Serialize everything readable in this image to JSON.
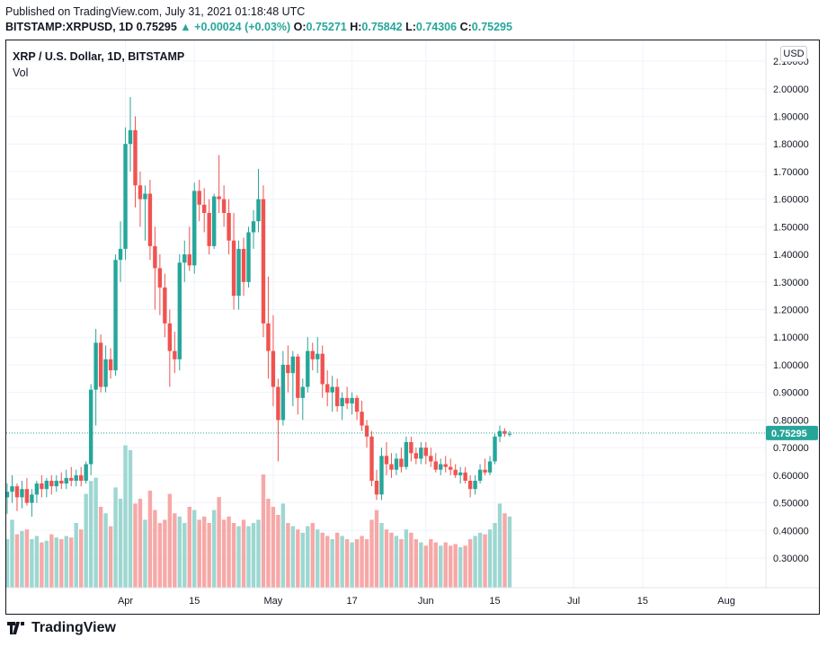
{
  "header": {
    "published": "Published on TradingView.com, July 31, 2021 01:18:48 UTC",
    "symbol_line": "BITSTAMP:XRPUSD, 1D",
    "last": "0.75295",
    "change": "▲ +0.00024 (+0.03%)",
    "o_label": "O:",
    "o_value": "0.75271",
    "h_label": "H:",
    "h_value": "0.75842",
    "l_label": "L:",
    "l_value": "0.74306",
    "c_label": "C:",
    "c_value": "0.75295"
  },
  "legend": {
    "title": "XRP / U.S. Dollar, 1D, BITSTAMP",
    "vol": "Vol"
  },
  "currency_button": "USD",
  "footer": {
    "brand": "TradingView"
  },
  "colors": {
    "up": "#26a69a",
    "down": "#ef5350",
    "up_vol": "#9dd7d1",
    "down_vol": "#f6a8a7",
    "grid": "#f0f3fa",
    "price_line": "#26a69a"
  },
  "chart_data": {
    "type": "candlestick",
    "y_axis_labels": [
      "2.10000",
      "2.00000",
      "1.90000",
      "1.80000",
      "1.70000",
      "1.60000",
      "1.50000",
      "1.40000",
      "1.30000",
      "1.20000",
      "1.10000",
      "1.00000",
      "0.90000",
      "0.80000",
      "0.70000",
      "0.60000",
      "0.50000",
      "0.40000",
      "0.30000"
    ],
    "ylim": [
      0.1,
      2.13
    ],
    "x_axis_labels": [
      "Apr",
      "15",
      "May",
      "17",
      "Jun",
      "15",
      "Jul",
      "15",
      "Aug"
    ],
    "x_tick_candle_index": [
      24,
      38,
      54,
      70,
      85,
      99,
      115,
      129,
      146
    ],
    "last_price_label": "0.75295",
    "scale": "linear",
    "grid": true,
    "candles": [
      [
        0.52,
        0.57,
        0.46,
        0.54
      ],
      [
        0.54,
        0.6,
        0.5,
        0.56
      ],
      [
        0.56,
        0.57,
        0.47,
        0.52
      ],
      [
        0.52,
        0.58,
        0.48,
        0.55
      ],
      [
        0.55,
        0.59,
        0.49,
        0.5
      ],
      [
        0.5,
        0.55,
        0.45,
        0.53
      ],
      [
        0.53,
        0.58,
        0.5,
        0.57
      ],
      [
        0.57,
        0.6,
        0.52,
        0.55
      ],
      [
        0.55,
        0.59,
        0.52,
        0.58
      ],
      [
        0.58,
        0.6,
        0.53,
        0.56
      ],
      [
        0.56,
        0.6,
        0.54,
        0.58
      ],
      [
        0.58,
        0.61,
        0.55,
        0.57
      ],
      [
        0.57,
        0.62,
        0.55,
        0.59
      ],
      [
        0.59,
        0.63,
        0.56,
        0.58
      ],
      [
        0.58,
        0.62,
        0.56,
        0.6
      ],
      [
        0.6,
        0.63,
        0.56,
        0.58
      ],
      [
        0.58,
        0.65,
        0.57,
        0.64
      ],
      [
        0.64,
        0.93,
        0.6,
        0.91
      ],
      [
        0.91,
        1.13,
        0.78,
        1.08
      ],
      [
        1.08,
        1.11,
        0.9,
        0.92
      ],
      [
        0.92,
        1.07,
        0.9,
        1.02
      ],
      [
        1.02,
        1.06,
        0.95,
        0.98
      ],
      [
        0.98,
        1.4,
        0.96,
        1.38
      ],
      [
        1.38,
        1.52,
        1.3,
        1.42
      ],
      [
        1.42,
        1.86,
        1.38,
        1.8
      ],
      [
        1.8,
        1.97,
        1.7,
        1.85
      ],
      [
        1.85,
        1.9,
        1.57,
        1.65
      ],
      [
        1.65,
        1.7,
        1.5,
        1.6
      ],
      [
        1.6,
        1.65,
        1.45,
        1.62
      ],
      [
        1.62,
        1.67,
        1.38,
        1.43
      ],
      [
        1.43,
        1.5,
        1.2,
        1.35
      ],
      [
        1.35,
        1.4,
        1.18,
        1.28
      ],
      [
        1.28,
        1.33,
        1.1,
        1.15
      ],
      [
        1.15,
        1.2,
        0.92,
        1.05
      ],
      [
        1.05,
        1.12,
        0.97,
        1.02
      ],
      [
        1.02,
        1.4,
        0.98,
        1.37
      ],
      [
        1.37,
        1.45,
        1.3,
        1.4
      ],
      [
        1.4,
        1.5,
        1.34,
        1.36
      ],
      [
        1.36,
        1.66,
        1.33,
        1.63
      ],
      [
        1.63,
        1.67,
        1.52,
        1.58
      ],
      [
        1.58,
        1.64,
        1.48,
        1.55
      ],
      [
        1.55,
        1.6,
        1.4,
        1.43
      ],
      [
        1.43,
        1.62,
        1.42,
        1.61
      ],
      [
        1.61,
        1.76,
        1.55,
        1.6
      ],
      [
        1.6,
        1.65,
        1.5,
        1.55
      ],
      [
        1.55,
        1.6,
        1.4,
        1.45
      ],
      [
        1.45,
        1.55,
        1.2,
        1.25
      ],
      [
        1.25,
        1.45,
        1.2,
        1.42
      ],
      [
        1.42,
        1.46,
        1.25,
        1.3
      ],
      [
        1.3,
        1.5,
        1.28,
        1.48
      ],
      [
        1.48,
        1.56,
        1.42,
        1.52
      ],
      [
        1.52,
        1.71,
        1.48,
        1.6
      ],
      [
        1.6,
        1.65,
        1.1,
        1.15
      ],
      [
        1.15,
        1.32,
        0.95,
        1.05
      ],
      [
        1.05,
        1.18,
        0.85,
        0.92
      ],
      [
        0.92,
        0.95,
        0.65,
        0.8
      ],
      [
        0.8,
        1.05,
        0.78,
        1.0
      ],
      [
        1.0,
        1.07,
        0.9,
        0.97
      ],
      [
        0.97,
        1.05,
        0.85,
        1.03
      ],
      [
        1.03,
        1.04,
        0.82,
        0.88
      ],
      [
        0.88,
        0.95,
        0.8,
        0.92
      ],
      [
        0.92,
        1.1,
        0.9,
        1.05
      ],
      [
        1.05,
        1.08,
        0.98,
        1.02
      ],
      [
        1.02,
        1.1,
        0.97,
        1.04
      ],
      [
        1.04,
        1.07,
        0.88,
        0.93
      ],
      [
        0.93,
        0.98,
        0.85,
        0.9
      ],
      [
        0.9,
        0.96,
        0.83,
        0.92
      ],
      [
        0.92,
        0.95,
        0.83,
        0.85
      ],
      [
        0.85,
        0.9,
        0.8,
        0.88
      ],
      [
        0.88,
        0.92,
        0.84,
        0.86
      ],
      [
        0.86,
        0.9,
        0.82,
        0.88
      ],
      [
        0.88,
        0.89,
        0.8,
        0.83
      ],
      [
        0.83,
        0.87,
        0.76,
        0.78
      ],
      [
        0.78,
        0.8,
        0.7,
        0.74
      ],
      [
        0.74,
        0.76,
        0.56,
        0.58
      ],
      [
        0.58,
        0.62,
        0.51,
        0.53
      ],
      [
        0.53,
        0.7,
        0.51,
        0.67
      ],
      [
        0.67,
        0.72,
        0.6,
        0.64
      ],
      [
        0.64,
        0.68,
        0.59,
        0.62
      ],
      [
        0.62,
        0.68,
        0.6,
        0.66
      ],
      [
        0.66,
        0.7,
        0.61,
        0.63
      ],
      [
        0.63,
        0.74,
        0.62,
        0.72
      ],
      [
        0.72,
        0.74,
        0.65,
        0.68
      ],
      [
        0.68,
        0.7,
        0.64,
        0.66
      ],
      [
        0.66,
        0.72,
        0.64,
        0.7
      ],
      [
        0.7,
        0.72,
        0.64,
        0.67
      ],
      [
        0.67,
        0.7,
        0.63,
        0.65
      ],
      [
        0.65,
        0.68,
        0.61,
        0.62
      ],
      [
        0.62,
        0.66,
        0.6,
        0.64
      ],
      [
        0.64,
        0.67,
        0.61,
        0.63
      ],
      [
        0.63,
        0.66,
        0.6,
        0.62
      ],
      [
        0.62,
        0.64,
        0.59,
        0.6
      ],
      [
        0.6,
        0.63,
        0.57,
        0.61
      ],
      [
        0.61,
        0.63,
        0.57,
        0.58
      ],
      [
        0.58,
        0.6,
        0.52,
        0.55
      ],
      [
        0.55,
        0.6,
        0.53,
        0.58
      ],
      [
        0.58,
        0.64,
        0.57,
        0.62
      ],
      [
        0.62,
        0.66,
        0.6,
        0.61
      ],
      [
        0.61,
        0.67,
        0.6,
        0.65
      ],
      [
        0.65,
        0.75,
        0.64,
        0.74
      ],
      [
        0.74,
        0.78,
        0.72,
        0.76
      ],
      [
        0.76,
        0.77,
        0.74,
        0.75
      ],
      [
        0.75,
        0.76,
        0.74,
        0.75
      ]
    ],
    "volumes": [
      0.3,
      0.42,
      0.33,
      0.35,
      0.36,
      0.3,
      0.32,
      0.28,
      0.29,
      0.33,
      0.31,
      0.3,
      0.32,
      0.31,
      0.4,
      0.36,
      0.58,
      0.66,
      0.68,
      0.5,
      0.46,
      0.38,
      0.62,
      0.55,
      0.88,
      0.85,
      0.52,
      0.55,
      0.42,
      0.6,
      0.48,
      0.4,
      0.42,
      0.58,
      0.46,
      0.44,
      0.4,
      0.5,
      0.48,
      0.42,
      0.44,
      0.4,
      0.48,
      0.56,
      0.42,
      0.44,
      0.4,
      0.38,
      0.42,
      0.38,
      0.4,
      0.42,
      0.7,
      0.55,
      0.5,
      0.45,
      0.52,
      0.4,
      0.38,
      0.36,
      0.34,
      0.38,
      0.4,
      0.36,
      0.34,
      0.32,
      0.3,
      0.34,
      0.32,
      0.3,
      0.28,
      0.3,
      0.32,
      0.3,
      0.42,
      0.48,
      0.4,
      0.36,
      0.34,
      0.32,
      0.3,
      0.36,
      0.34,
      0.3,
      0.28,
      0.26,
      0.3,
      0.28,
      0.26,
      0.28,
      0.26,
      0.27,
      0.25,
      0.26,
      0.3,
      0.32,
      0.34,
      0.33,
      0.36,
      0.4,
      0.52,
      0.46,
      0.44
    ],
    "vol_colors_up": [
      true,
      true,
      false,
      true,
      false,
      true,
      true,
      false,
      true,
      false,
      true,
      false,
      true,
      false,
      true,
      false,
      true,
      true,
      true,
      false,
      true,
      false,
      true,
      true,
      true,
      true,
      false,
      false,
      true,
      false,
      false,
      false,
      false,
      false,
      false,
      true,
      true,
      false,
      true,
      false,
      false,
      false,
      true,
      false,
      false,
      false,
      false,
      true,
      false,
      true,
      true,
      true,
      false,
      false,
      false,
      false,
      true,
      false,
      true,
      false,
      true,
      true,
      false,
      true,
      false,
      false,
      true,
      false,
      true,
      false,
      true,
      false,
      false,
      false,
      false,
      false,
      true,
      false,
      false,
      true,
      false,
      true,
      false,
      false,
      true,
      false,
      false,
      false,
      true,
      false,
      false,
      false,
      true,
      false,
      false,
      true,
      true,
      false,
      true,
      true,
      true,
      false,
      true
    ]
  }
}
